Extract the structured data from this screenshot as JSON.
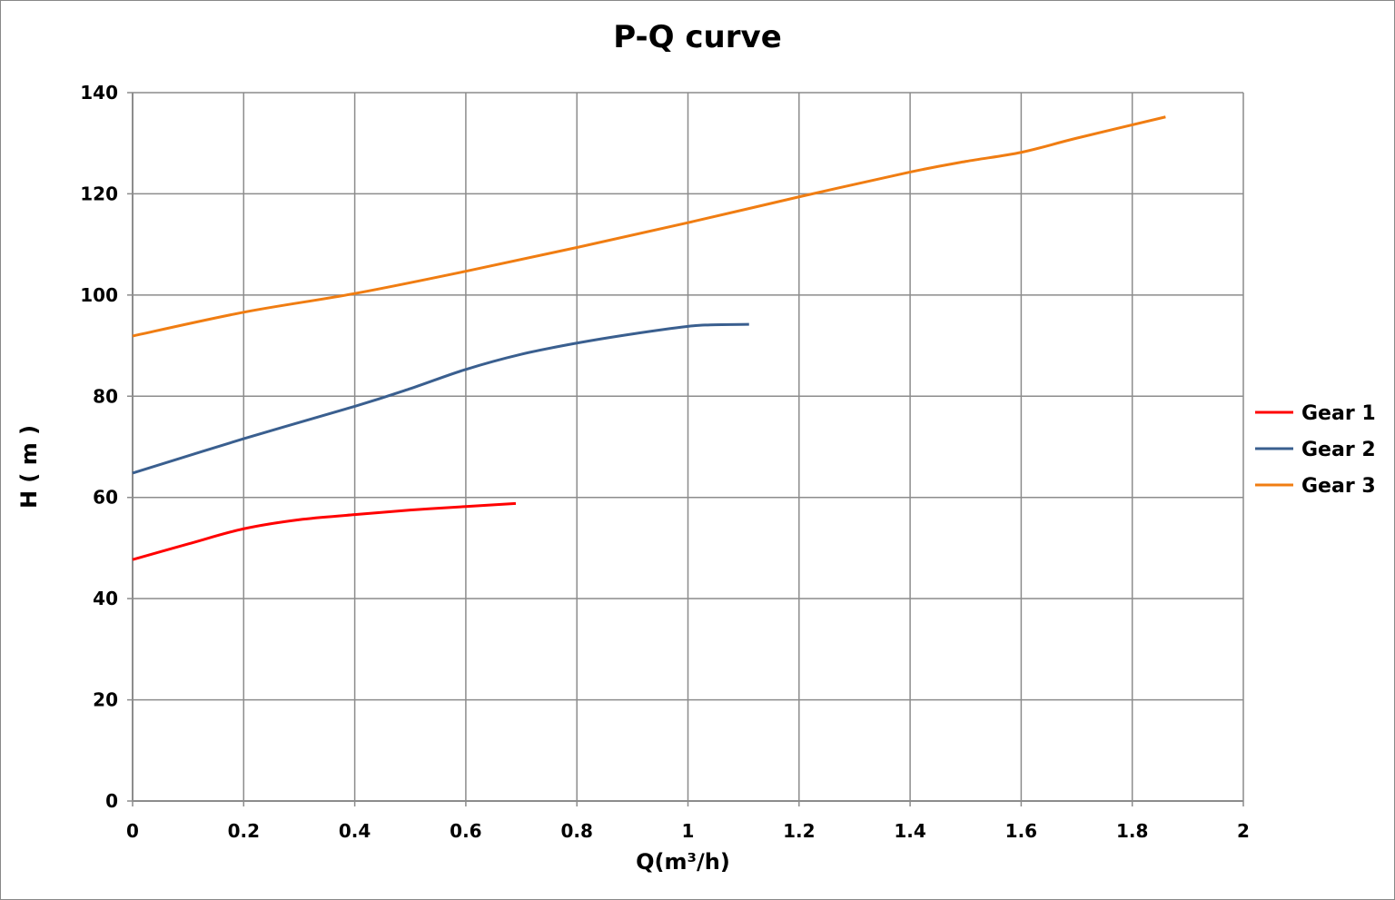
{
  "chart_data": {
    "type": "line",
    "title": "P-Q  curve",
    "xlabel": "Q(m³/h)",
    "ylabel": "H ( m )",
    "xlim": [
      0,
      2
    ],
    "ylim": [
      0,
      140
    ],
    "xticks": [
      "0",
      "0.2",
      "0.4",
      "0.6",
      "0.8",
      "1",
      "1.2",
      "1.4",
      "1.6",
      "1.8",
      "2"
    ],
    "yticks": [
      "0",
      "20",
      "40",
      "60",
      "80",
      "100",
      "120",
      "140"
    ],
    "grid": true,
    "legend_position": "right",
    "series": [
      {
        "name": "Gear 1",
        "color": "#ff0000",
        "x": [
          0,
          0.1,
          0.2,
          0.3,
          0.4,
          0.5,
          0.6,
          0.69
        ],
        "y": [
          47.7,
          50.8,
          53.8,
          55.6,
          56.6,
          57.5,
          58.2,
          58.8
        ]
      },
      {
        "name": "Gear 2",
        "color": "#3a5f8f",
        "x": [
          0,
          0.2,
          0.4,
          0.5,
          0.6,
          0.7,
          0.8,
          0.9,
          1.0,
          1.04,
          1.11
        ],
        "y": [
          64.8,
          71.6,
          78.0,
          81.5,
          85.3,
          88.3,
          90.5,
          92.3,
          93.8,
          94.1,
          94.2
        ]
      },
      {
        "name": "Gear 3",
        "color": "#f07d12",
        "x": [
          0,
          0.2,
          0.4,
          0.6,
          0.8,
          1.0,
          1.2,
          1.4,
          1.5,
          1.6,
          1.7,
          1.86
        ],
        "y": [
          91.9,
          96.6,
          100.3,
          104.7,
          109.4,
          114.3,
          119.4,
          124.3,
          126.4,
          128.2,
          131.0,
          135.2
        ]
      }
    ]
  }
}
